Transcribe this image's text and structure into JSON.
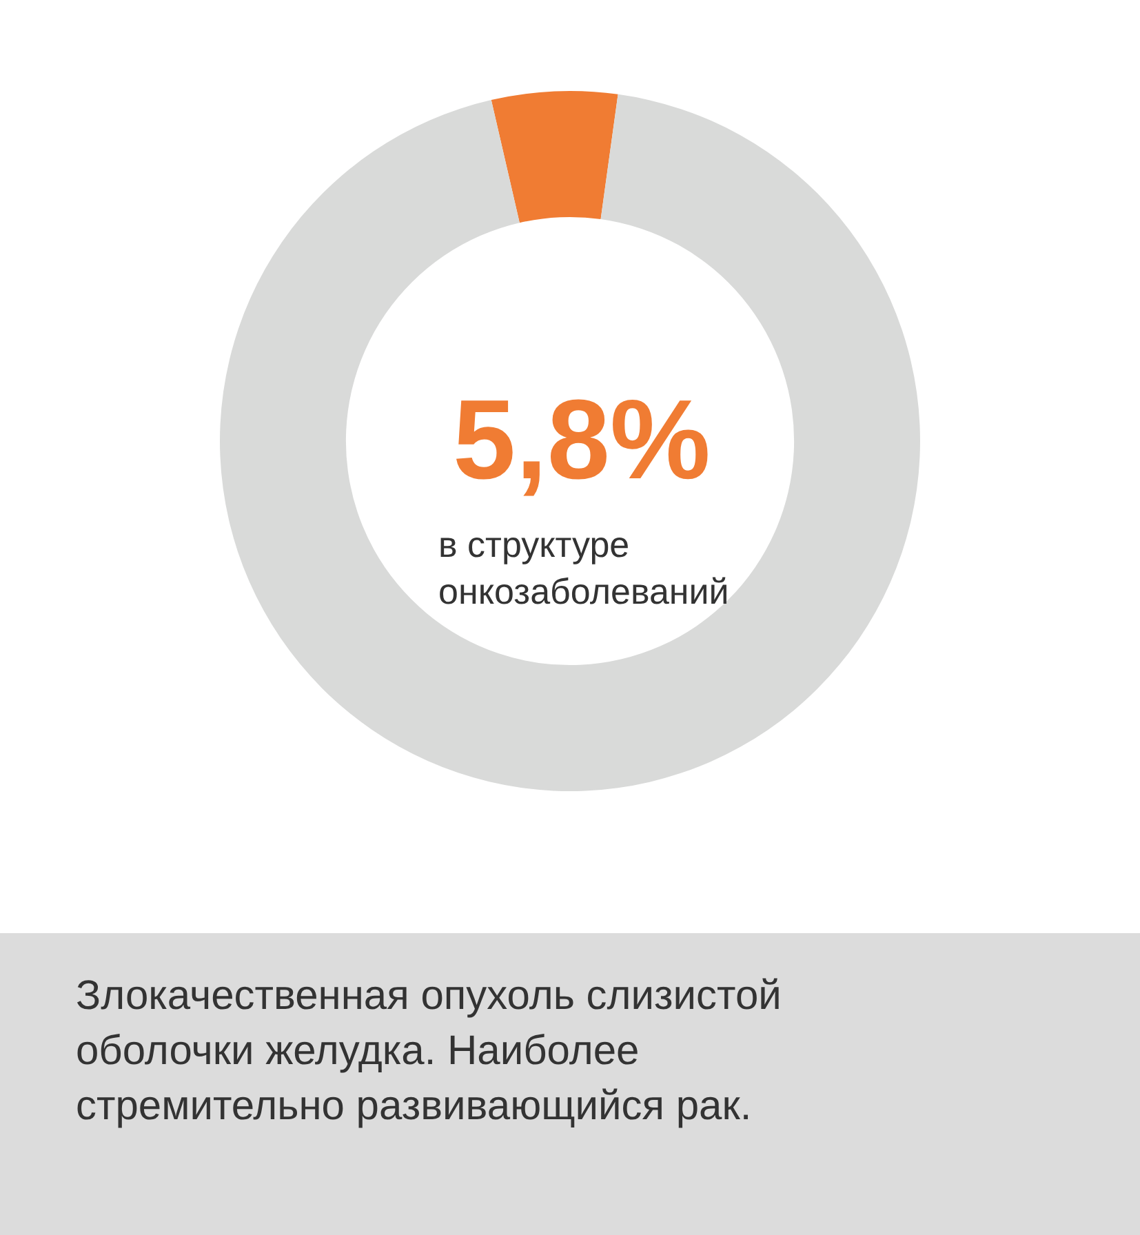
{
  "chart_data": {
    "type": "donut",
    "categories": [
      null,
      null
    ],
    "values": [
      5.8,
      94.2
    ],
    "colors": [
      "#f07c33",
      "#d9dad9"
    ],
    "title": "5,8%",
    "annotations": [
      "в структуре онкозаболеваний",
      "Злокачественная опухоль слизистой оболочки желудка. Наиболее стремительно развивающийся рак."
    ],
    "legend": false
  }
}
